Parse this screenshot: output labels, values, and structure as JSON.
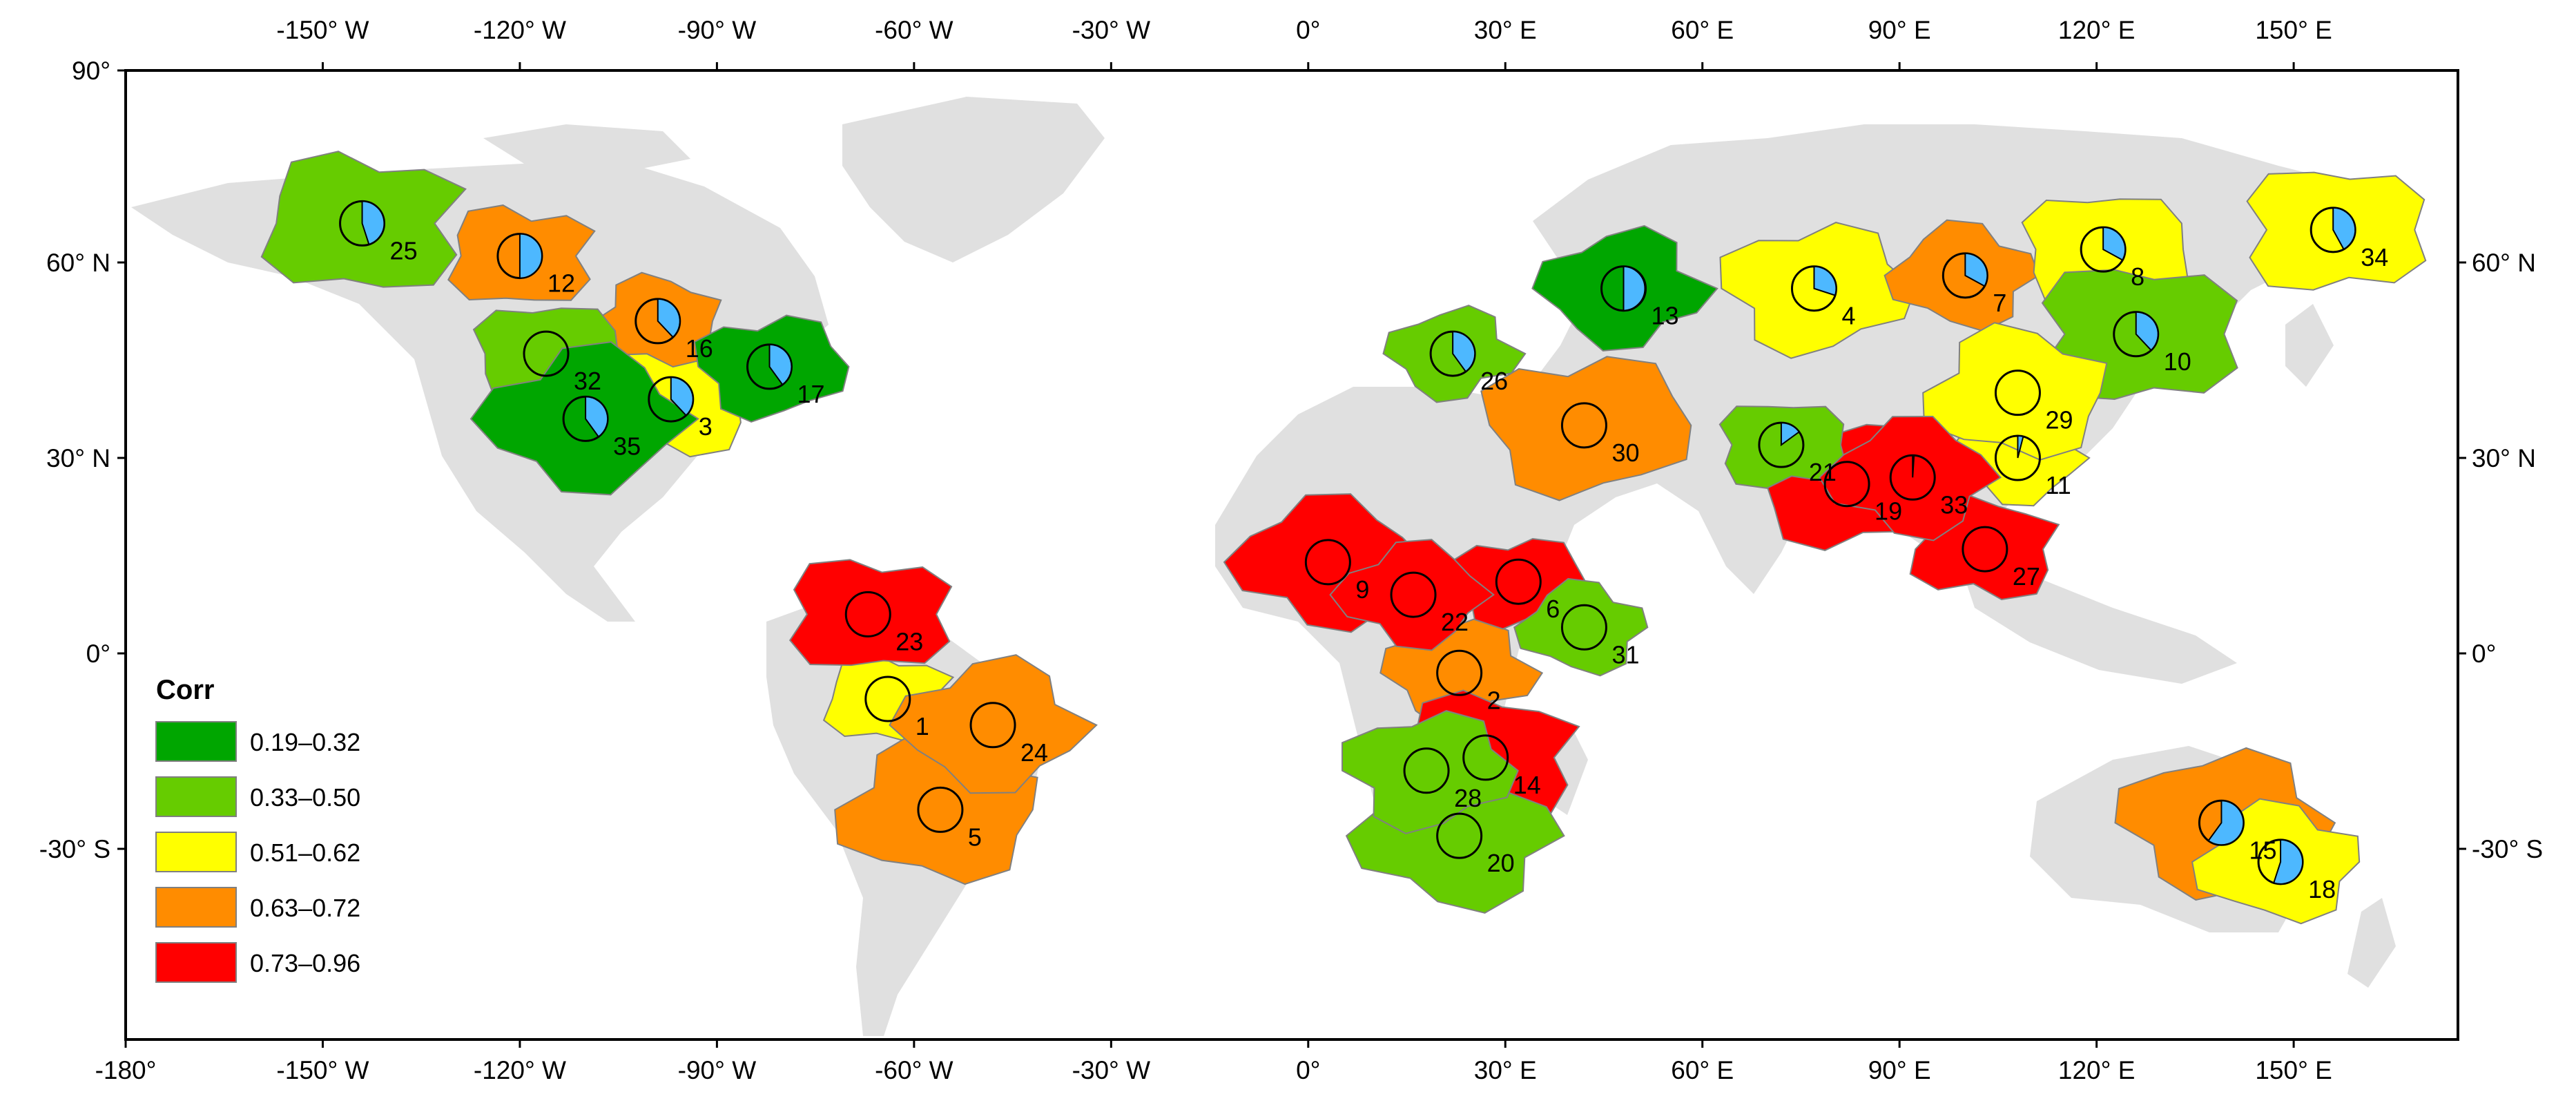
{
  "axes": {
    "top_ticks": [
      "-150° W",
      "-120° W",
      "-90° W",
      "-60° W",
      "-30° W",
      "0°",
      "30° E",
      "60° E",
      "90° E",
      "120° E",
      "150° E"
    ],
    "bottom_ticks": [
      "-180°",
      "-150° W",
      "-120° W",
      "-90° W",
      "-60° W",
      "-30° W",
      "0°",
      "30° E",
      "60° E",
      "90° E",
      "120° E",
      "150° E"
    ],
    "left_ticks": [
      "90°",
      "60° N",
      "30° N",
      "0°",
      "-30° S"
    ],
    "right_ticks": [
      "60° N",
      "30° N",
      "0°",
      "-30° S"
    ]
  },
  "legend": {
    "title": "Corr",
    "items": [
      {
        "label": "0.19–0.32",
        "color": "#00a600"
      },
      {
        "label": "0.33–0.50",
        "color": "#66cc00"
      },
      {
        "label": "0.51–0.62",
        "color": "#ffff00"
      },
      {
        "label": "0.63–0.72",
        "color": "#ff8c00"
      },
      {
        "label": "0.73–0.96",
        "color": "#ff0000"
      }
    ]
  },
  "basins": [
    {
      "id": "1",
      "lon": -64,
      "lat": -7,
      "class": 2,
      "pie": 0
    },
    {
      "id": "2",
      "lon": 23,
      "lat": -3,
      "class": 3,
      "pie": 0
    },
    {
      "id": "3",
      "lon": -97,
      "lat": 39,
      "class": 2,
      "pie": 0.38
    },
    {
      "id": "4",
      "lon": 77,
      "lat": 56,
      "class": 2,
      "pie": 0.3
    },
    {
      "id": "5",
      "lon": -56,
      "lat": -24,
      "class": 3,
      "pie": 0
    },
    {
      "id": "6",
      "lon": 32,
      "lat": 11,
      "class": 4,
      "pie": 0
    },
    {
      "id": "7",
      "lon": 100,
      "lat": 58,
      "class": 3,
      "pie": 0.33
    },
    {
      "id": "8",
      "lon": 121,
      "lat": 62,
      "class": 2,
      "pie": 0.33
    },
    {
      "id": "9",
      "lon": 3,
      "lat": 14,
      "class": 4,
      "pie": 0
    },
    {
      "id": "10",
      "lon": 126,
      "lat": 49,
      "class": 1,
      "pie": 0.38
    },
    {
      "id": "11",
      "lon": 108,
      "lat": 30,
      "class": 2,
      "pie": 0.04
    },
    {
      "id": "12",
      "lon": -120,
      "lat": 61,
      "class": 3,
      "pie": 0.5
    },
    {
      "id": "13",
      "lon": 48,
      "lat": 56,
      "class": 0,
      "pie": 0.5
    },
    {
      "id": "14",
      "lon": 27,
      "lat": -16,
      "class": 4,
      "pie": 0
    },
    {
      "id": "15",
      "lon": 139,
      "lat": -26,
      "class": 3,
      "pie": 0.6
    },
    {
      "id": "16",
      "lon": -99,
      "lat": 51,
      "class": 3,
      "pie": 0.38
    },
    {
      "id": "17",
      "lon": -82,
      "lat": 44,
      "class": 0,
      "pie": 0.4
    },
    {
      "id": "18",
      "lon": 148,
      "lat": -32,
      "class": 2,
      "pie": 0.55
    },
    {
      "id": "19",
      "lon": 82,
      "lat": 26,
      "class": 4,
      "pie": 0
    },
    {
      "id": "20",
      "lon": 23,
      "lat": -28,
      "class": 1,
      "pie": 0
    },
    {
      "id": "21",
      "lon": 72,
      "lat": 32,
      "class": 1,
      "pie": 0.15
    },
    {
      "id": "22",
      "lon": 16,
      "lat": 9,
      "class": 4,
      "pie": 0
    },
    {
      "id": "23",
      "lon": -67,
      "lat": 6,
      "class": 4,
      "pie": 0
    },
    {
      "id": "24",
      "lon": -48,
      "lat": -11,
      "class": 3,
      "pie": 0
    },
    {
      "id": "25",
      "lon": -144,
      "lat": 66,
      "class": 1,
      "pie": 0.45
    },
    {
      "id": "26",
      "lon": 22,
      "lat": 46,
      "class": 1,
      "pie": 0.4
    },
    {
      "id": "27",
      "lon": 103,
      "lat": 16,
      "class": 4,
      "pie": 0
    },
    {
      "id": "28",
      "lon": 18,
      "lat": -18,
      "class": 1,
      "pie": 0
    },
    {
      "id": "29",
      "lon": 108,
      "lat": 40,
      "class": 2,
      "pie": 0
    },
    {
      "id": "30",
      "lon": 42,
      "lat": 35,
      "class": 3,
      "pie": 0
    },
    {
      "id": "31",
      "lon": 42,
      "lat": 4,
      "class": 1,
      "pie": 0
    },
    {
      "id": "32",
      "lon": -116,
      "lat": 46,
      "class": 1,
      "pie": 0
    },
    {
      "id": "33",
      "lon": 92,
      "lat": 27,
      "class": 4,
      "pie": 0.01
    },
    {
      "id": "34",
      "lon": 156,
      "lat": 65,
      "class": 2,
      "pie": 0.42
    },
    {
      "id": "35",
      "lon": -110,
      "lat": 36,
      "class": 0,
      "pie": 0.4
    }
  ],
  "colors": {
    "land": "#e0e0e0",
    "pie_blue": "#4db8ff",
    "frame": "#000000",
    "border": "#808080"
  }
}
